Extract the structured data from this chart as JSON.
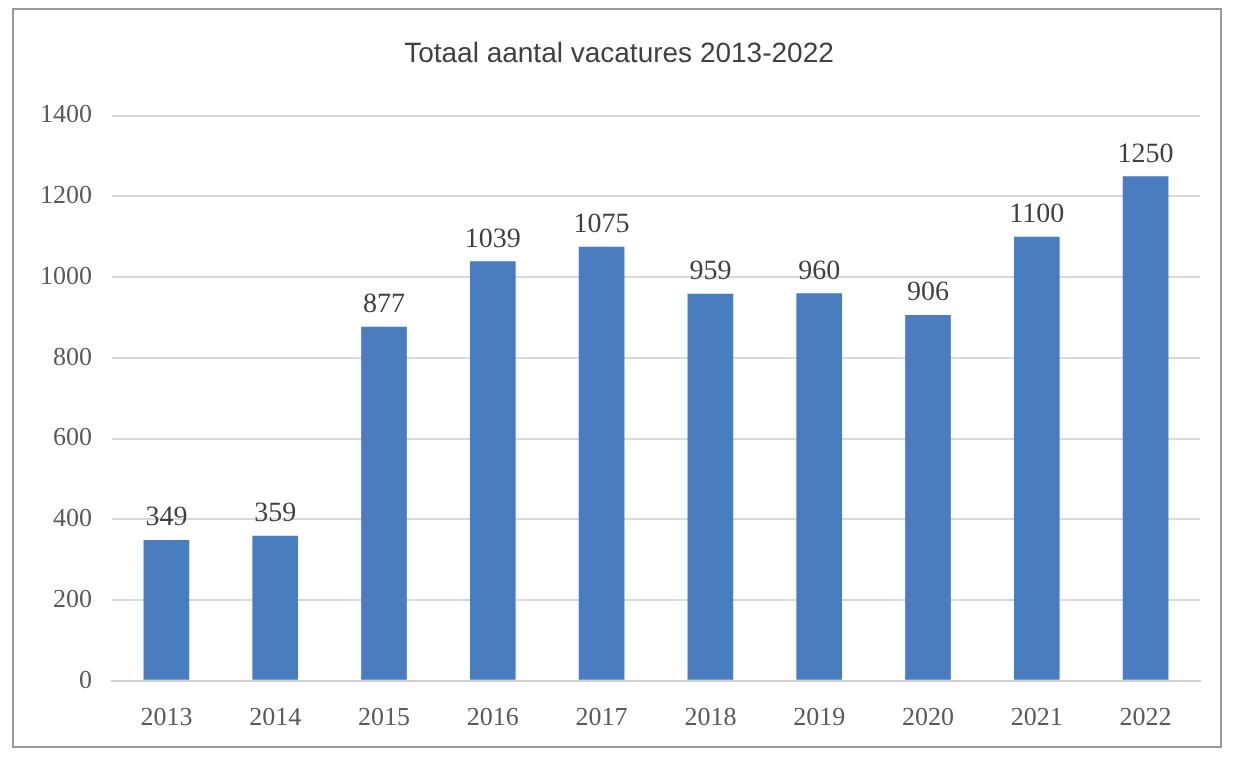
{
  "chart_data": {
    "type": "bar",
    "title": "Totaal aantal vacatures  2013-2022",
    "categories": [
      "2013",
      "2014",
      "2015",
      "2016",
      "2017",
      "2018",
      "2019",
      "2020",
      "2021",
      "2022"
    ],
    "values": [
      349,
      359,
      877,
      1039,
      1075,
      959,
      960,
      906,
      1100,
      1250
    ],
    "color": "#4a7cc0",
    "ylim": [
      0,
      1400
    ],
    "yticks": [
      0,
      200,
      400,
      600,
      800,
      1000,
      1200,
      1400
    ],
    "grid": "y",
    "data_labels": true
  }
}
